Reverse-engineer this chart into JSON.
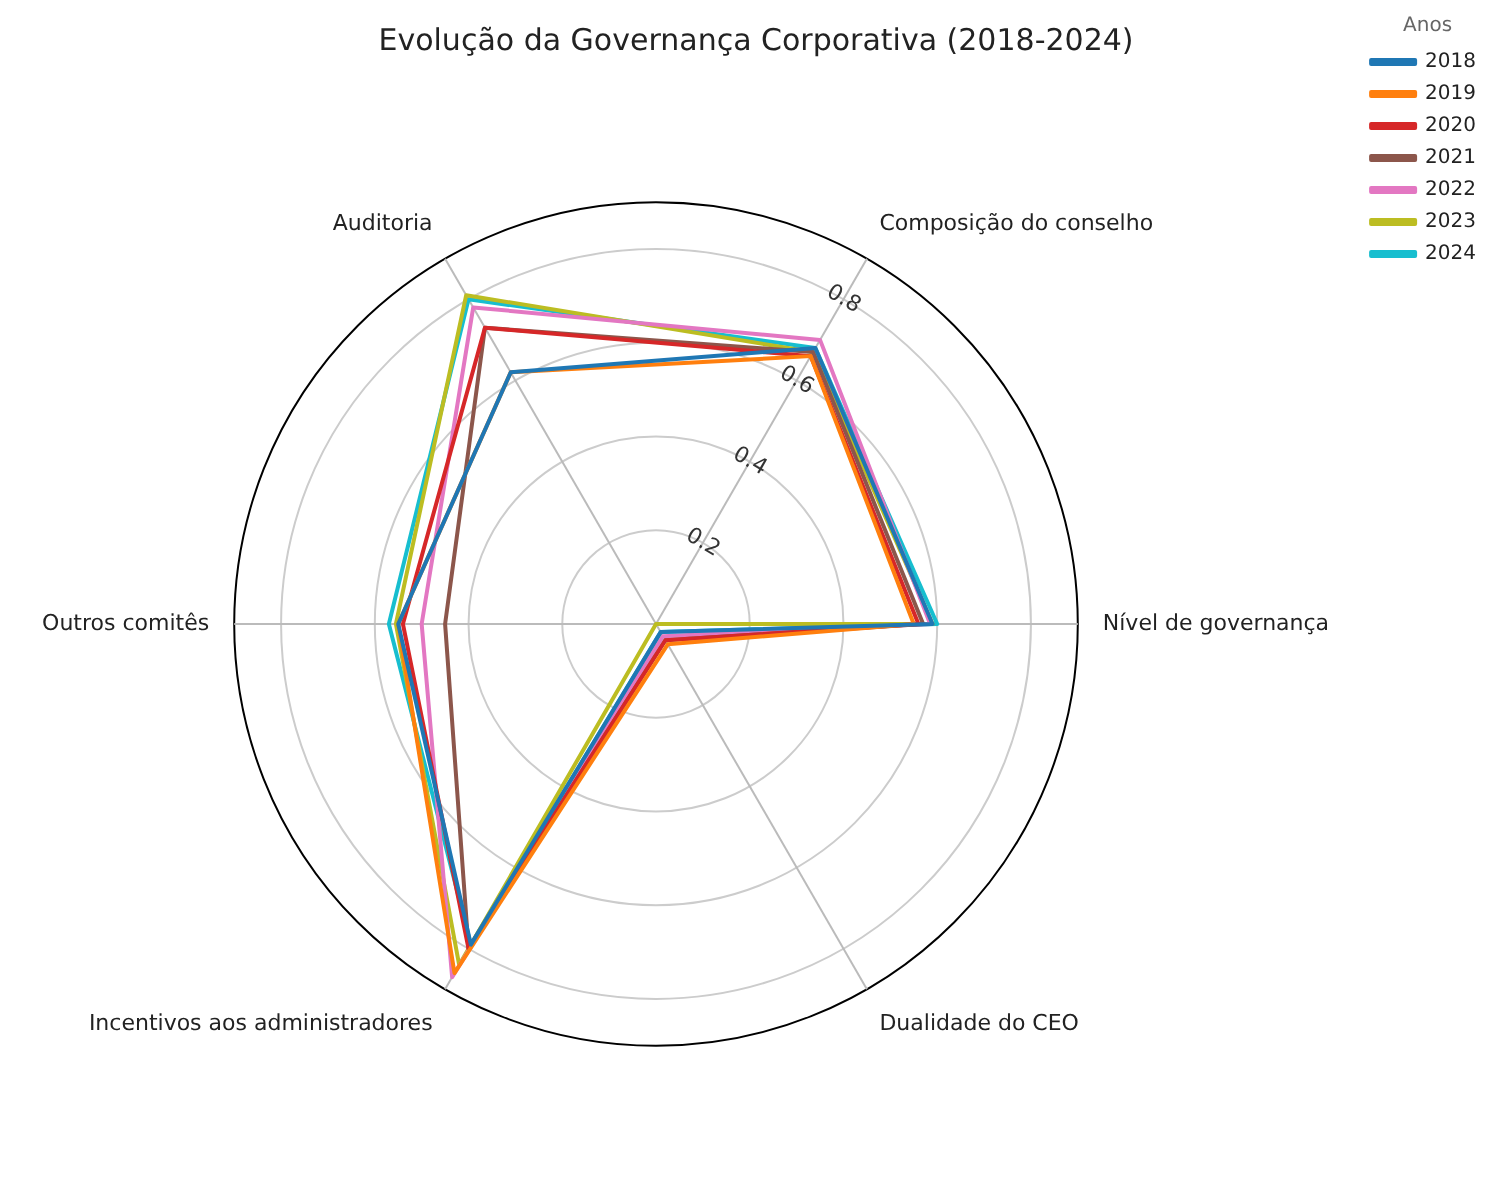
{
  "chart_data": {
    "type": "radar",
    "title": "Evolução da Governança Corporativa (2018-2024)",
    "legend_title": "Anos",
    "legend": "top right",
    "grid": true,
    "categories": [
      "Composição do conselho",
      "Nível de governança",
      "Dualidade do CEO",
      "Incentivos aos administradores",
      "Outros comitês",
      "Auditoria"
    ],
    "ylim": [
      0,
      0.9
    ],
    "yticks": [
      0.2,
      0.4,
      0.6,
      0.8
    ],
    "series": [
      {
        "name": "2018",
        "color": "#1f77b4",
        "values": [
          0.68,
          0.59,
          0.02,
          0.79,
          0.55,
          0.62
        ]
      },
      {
        "name": "2019",
        "color": "#ff7f0e",
        "values": [
          0.66,
          0.55,
          0.05,
          0.86,
          0.55,
          0.62
        ]
      },
      {
        "name": "2020",
        "color": "#d62728",
        "values": [
          0.66,
          0.56,
          0.04,
          0.8,
          0.54,
          0.73
        ]
      },
      {
        "name": "2021",
        "color": "#8c564b",
        "values": [
          0.67,
          0.57,
          0.04,
          0.8,
          0.45,
          0.73
        ]
      },
      {
        "name": "2022",
        "color": "#e377c2",
        "values": [
          0.7,
          0.585,
          0.03,
          0.87,
          0.5,
          0.78
        ]
      },
      {
        "name": "2023",
        "color": "#bcbd22",
        "values": [
          0.67,
          0.59,
          0.0,
          0.84,
          0.555,
          0.81
        ]
      },
      {
        "name": "2024",
        "color": "#17becf",
        "values": [
          0.68,
          0.6,
          0.02,
          0.79,
          0.57,
          0.8
        ]
      }
    ]
  }
}
